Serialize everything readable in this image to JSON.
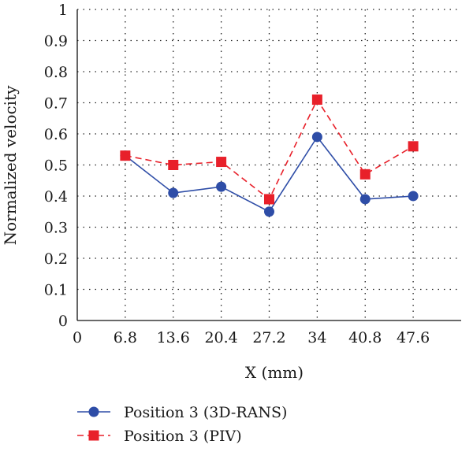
{
  "chart_data": {
    "type": "line",
    "xlabel": "X (mm)",
    "ylabel": "Normalized velocity",
    "x_ticks": [
      "0",
      "6.8",
      "13.6",
      "20.4",
      "27.2",
      "34",
      "40.8",
      "47.6"
    ],
    "y_ticks": [
      "0",
      "0.1",
      "0.2",
      "0.3",
      "0.4",
      "0.5",
      "0.6",
      "0.7",
      "0.8",
      "0.9",
      "1"
    ],
    "xlim": [
      0,
      54.4
    ],
    "ylim": [
      0,
      1
    ],
    "grid": true,
    "legend_position": "bottom-left",
    "x": [
      6.8,
      13.6,
      20.4,
      27.2,
      34,
      40.8,
      47.6
    ],
    "series": [
      {
        "name": "Position 3 (3D-RANS)",
        "values": [
          0.53,
          0.41,
          0.43,
          0.35,
          0.59,
          0.39,
          0.4
        ],
        "color": "#2e4da7",
        "marker": "circle",
        "line_style": "solid"
      },
      {
        "name": "Position 3 (PIV)",
        "values": [
          0.53,
          0.5,
          0.51,
          0.39,
          0.71,
          0.47,
          0.56
        ],
        "color": "#e8202a",
        "marker": "square",
        "line_style": "dashed"
      }
    ]
  }
}
